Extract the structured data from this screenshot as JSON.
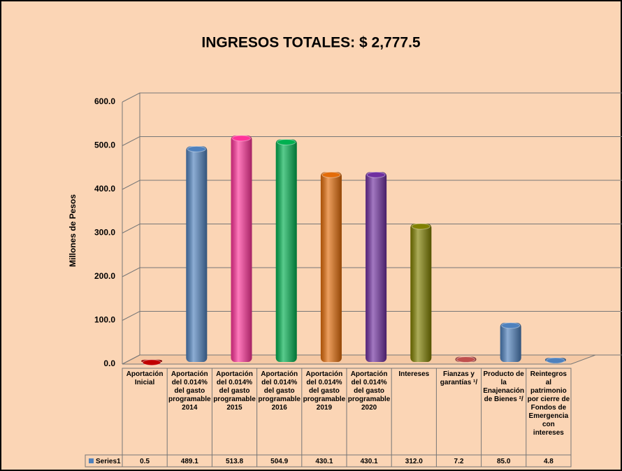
{
  "chart_data": {
    "type": "bar",
    "title": "INGRESOS TOTALES: $ 2,777.5",
    "y_label": "Millones de Pesos",
    "categories": [
      "Aportación Inicial",
      "Aportación del 0.014% del gasto programable 2014",
      "Aportación del 0.014% del gasto programable 2015",
      "Aportación del 0.014% del gasto programable 2016",
      "Aportación del 0.014% del gasto programable 2019",
      "Aportación del 0.014% del gasto programable 2020",
      "Intereses",
      "Fianzas y garantías ¹/",
      "Producto de la Enajenación de Bienes ²/",
      "Reintegros al patrimonio por cierre de Fondos de Emergencia con intereses"
    ],
    "series": [
      {
        "name": "Series1",
        "color": "#4f81bd",
        "values": [
          0.5,
          489.1,
          513.8,
          504.9,
          430.1,
          430.1,
          312.0,
          7.2,
          85.0,
          4.8
        ],
        "value_labels": [
          "0.5",
          "489.1",
          "513.8",
          "504.9",
          "430.1",
          "430.1",
          "312.0",
          "7.2",
          "85.0",
          "4.8"
        ],
        "colors": [
          "#c00000",
          "#4f81bd",
          "#ff3399",
          "#00b050",
          "#e36c09",
          "#7030a0",
          "#808000",
          "#c0504d",
          "#4f81bd",
          "#4f81bd"
        ]
      }
    ],
    "ylim": [
      0,
      600
    ],
    "yticks": [
      {
        "value": 0,
        "label": "0.0"
      },
      {
        "value": 100,
        "label": "100.0"
      },
      {
        "value": 200,
        "label": "200.0"
      },
      {
        "value": 300,
        "label": "300.0"
      },
      {
        "value": 400,
        "label": "400.0"
      },
      {
        "value": 500,
        "label": "500.0"
      },
      {
        "value": 600,
        "label": "600.0"
      }
    ],
    "grid": true
  }
}
